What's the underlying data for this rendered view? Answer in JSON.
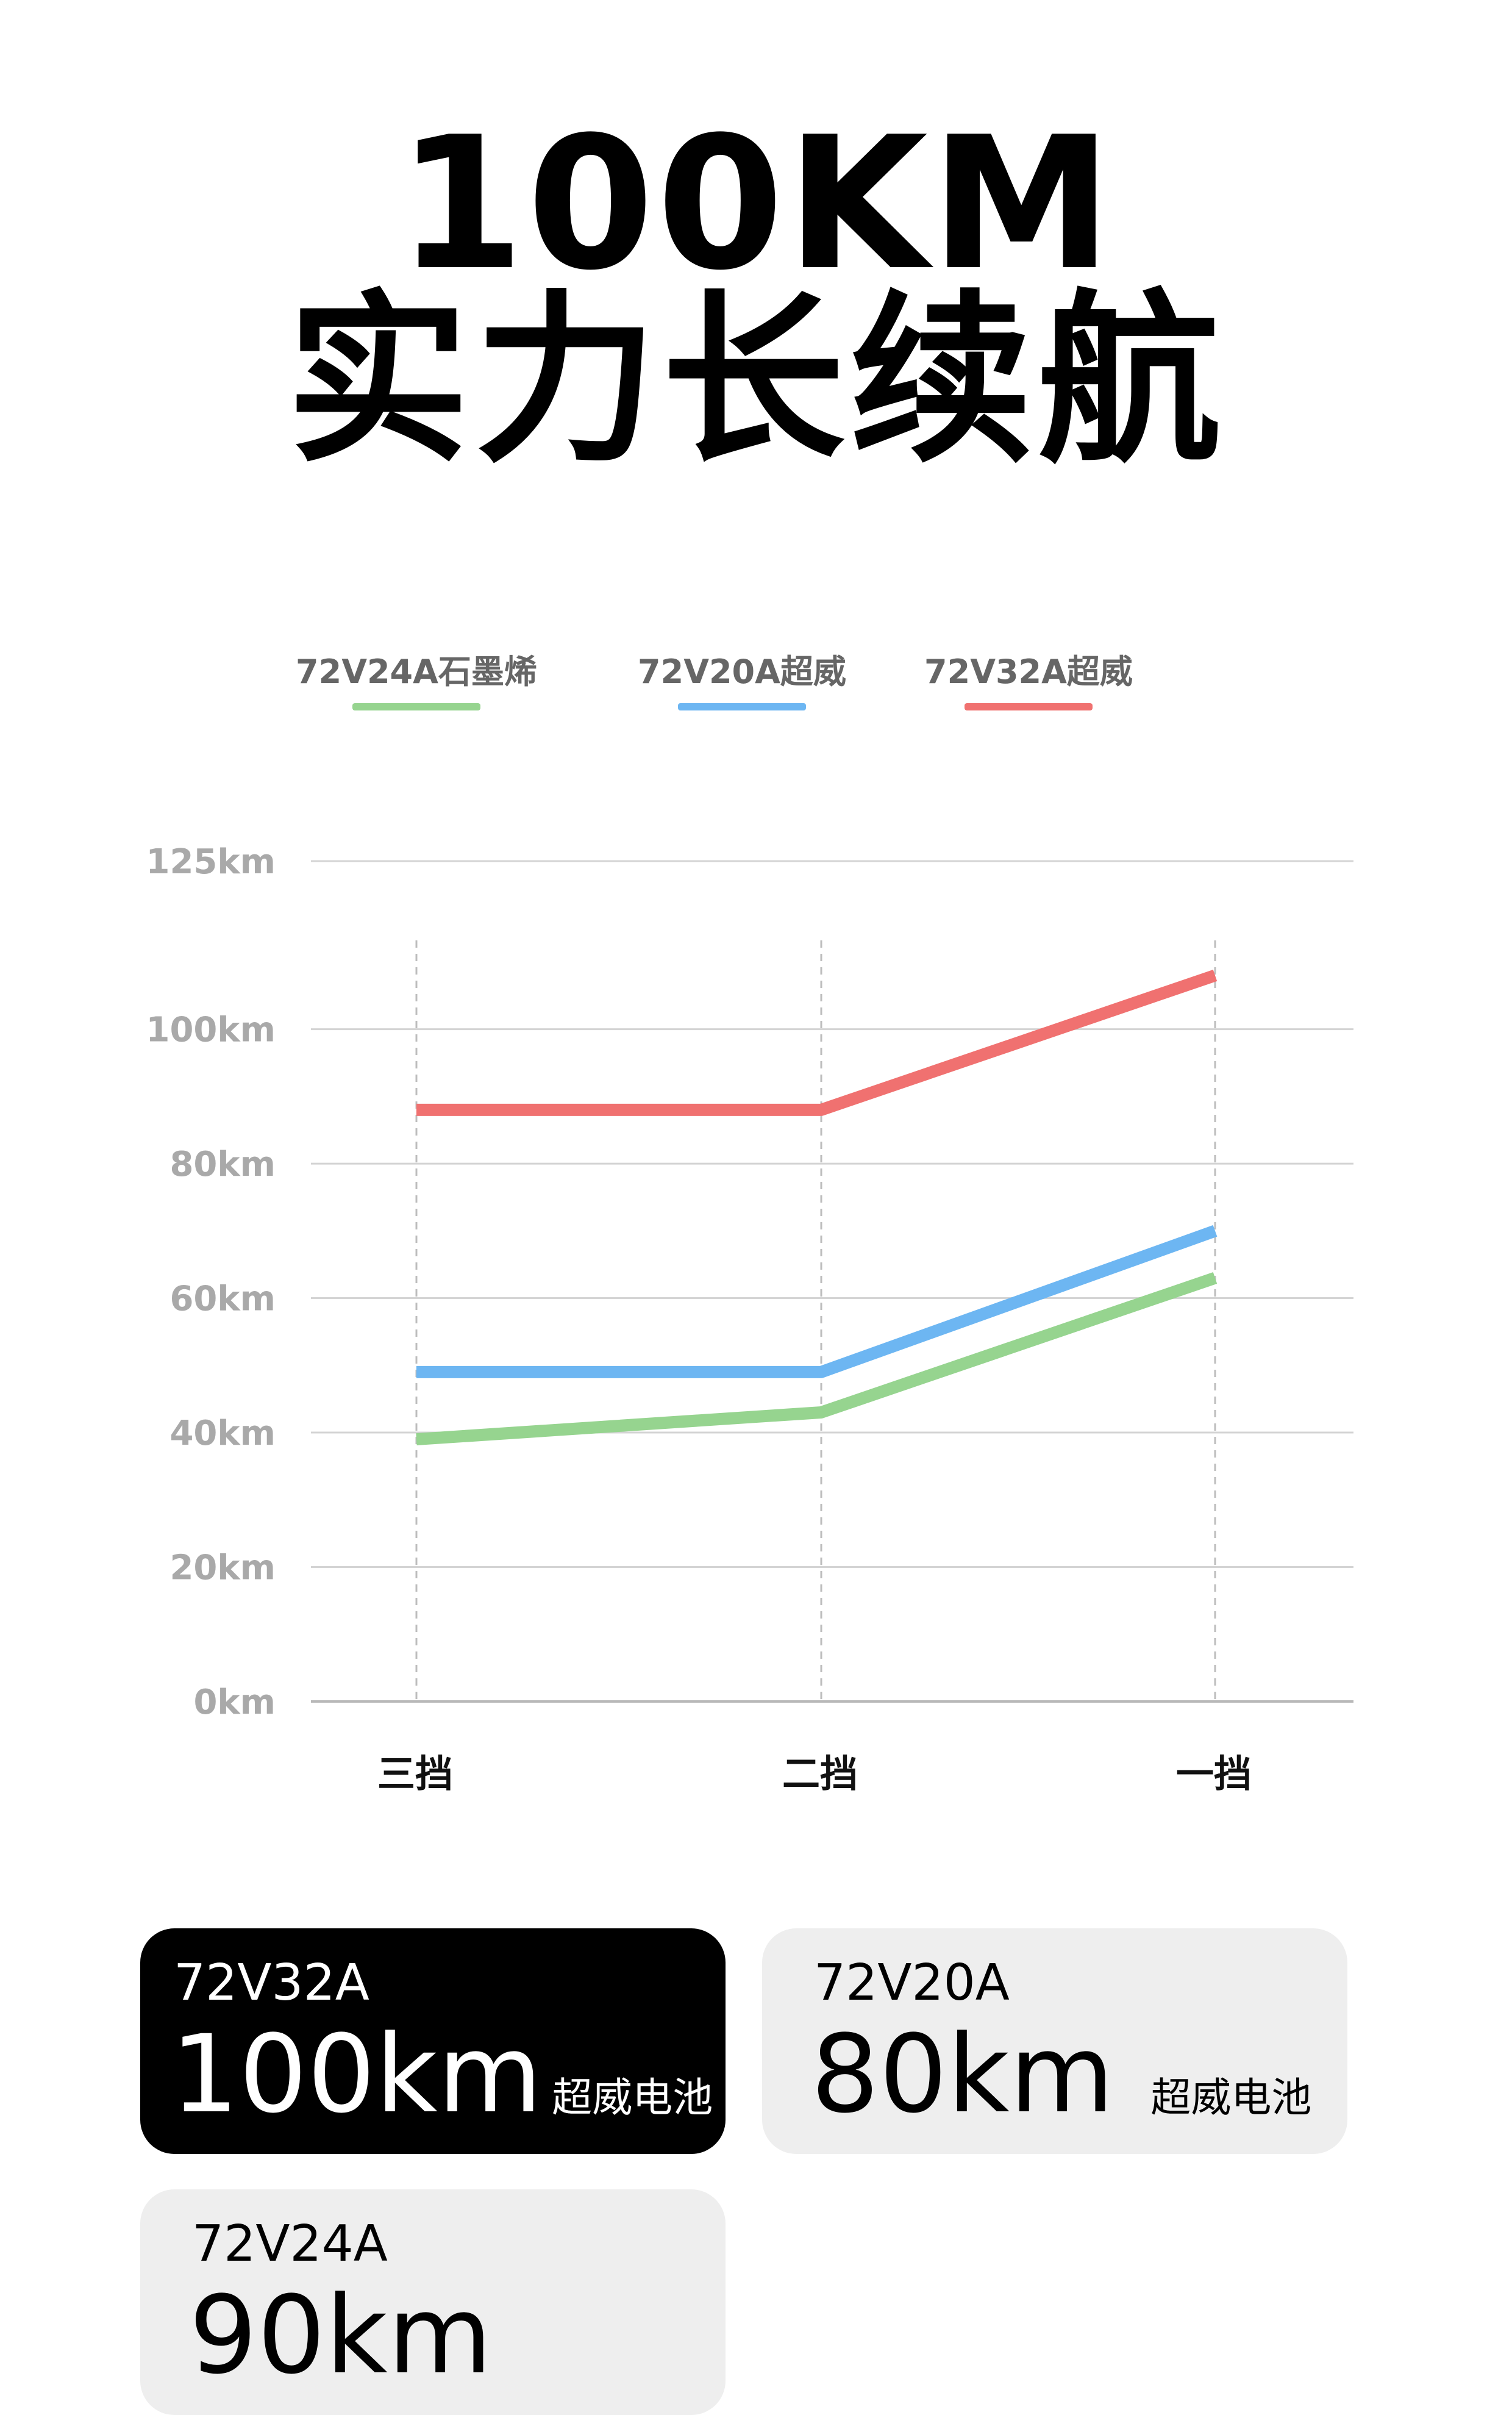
{
  "headline": {
    "line1": "100KM",
    "line2": "实力长续航"
  },
  "chart_data": {
    "type": "line",
    "categories": [
      "三挡",
      "二挡",
      "一挡"
    ],
    "y_ticks": [
      "0km",
      "20km",
      "40km",
      "60km",
      "80km",
      "100km",
      "125km"
    ],
    "ylim": [
      0,
      125
    ],
    "grid": true,
    "legend_position": "top",
    "series": [
      {
        "name": "72V24A石墨烯",
        "color": "#96d48f",
        "values": [
          39,
          43,
          63
        ]
      },
      {
        "name": "72V20A超威",
        "color": "#6db6f2",
        "values": [
          49,
          49,
          70
        ]
      },
      {
        "name": "72V32A超威",
        "color": "#f07170",
        "values": [
          88,
          88,
          108
        ]
      }
    ]
  },
  "cards": [
    {
      "model": "72V32A",
      "value": "100km",
      "unit": "超威电池",
      "style": "dark"
    },
    {
      "model": "72V20A",
      "value": "80km",
      "unit": "超威电池",
      "style": "light"
    },
    {
      "model": "72V24A",
      "value": "90km",
      "unit": "",
      "style": "light"
    }
  ]
}
